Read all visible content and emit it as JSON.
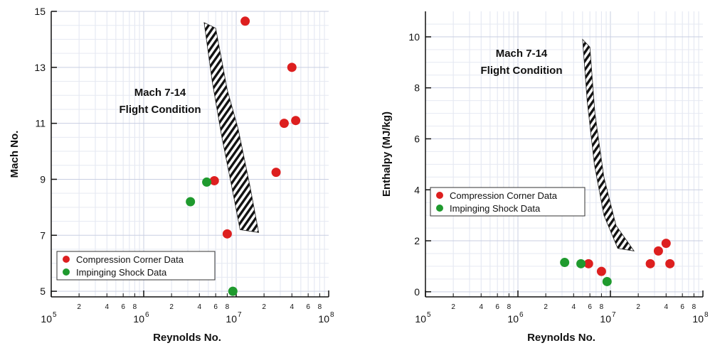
{
  "chart_data": [
    {
      "type": "scatter",
      "x_scale": "log",
      "xlabel": "Reynolds No.",
      "ylabel": "Mach No.",
      "xlim": [
        100000,
        100000000
      ],
      "ylim": [
        4.8,
        15
      ],
      "grid": true,
      "x_major_ticks": [
        {
          "value": 100000,
          "base": "10",
          "exp": "5"
        },
        {
          "value": 1000000,
          "base": "10",
          "exp": "6"
        },
        {
          "value": 10000000,
          "base": "10",
          "exp": "7"
        },
        {
          "value": 100000000,
          "base": "10",
          "exp": "8"
        }
      ],
      "x_minor_labels": [
        "2",
        "4",
        "6",
        "8"
      ],
      "y_ticks": [
        "5",
        "7",
        "9",
        "11",
        "13",
        "15"
      ],
      "annotation": [
        "Mach 7-14",
        "Flight Condition"
      ],
      "legend_position": "bottom-left",
      "band": {
        "left": [
          [
            4500000,
            14.6
          ],
          [
            5500000,
            12.5
          ],
          [
            7000000,
            10.5
          ],
          [
            9000000,
            8.7
          ],
          [
            11000000,
            7.2
          ]
        ],
        "right": [
          [
            6000000,
            14.4
          ],
          [
            8000000,
            12.2
          ],
          [
            10500000,
            10.8
          ],
          [
            14000000,
            8.8
          ],
          [
            17500000,
            7.1
          ]
        ]
      },
      "series": [
        {
          "name": "Compression Corner Data",
          "color": "#dd1f1f",
          "points": [
            [
              12500000,
              14.65
            ],
            [
              40000000,
              13.0
            ],
            [
              33000000,
              11.0
            ],
            [
              44000000,
              11.1
            ],
            [
              27000000,
              9.25
            ],
            [
              5800000,
              8.95
            ],
            [
              8000000,
              7.05
            ]
          ]
        },
        {
          "name": "Impinging Shock Data",
          "color": "#1f9a2e",
          "points": [
            [
              3200000,
              8.2
            ],
            [
              4800000,
              8.9
            ],
            [
              9200000,
              5.0
            ]
          ]
        }
      ]
    },
    {
      "type": "scatter",
      "x_scale": "log",
      "xlabel": "Reynolds No.",
      "ylabel": "Enthalpy (MJ/kg)",
      "xlim": [
        100000,
        100000000
      ],
      "ylim": [
        -0.2,
        11
      ],
      "grid": true,
      "x_major_ticks": [
        {
          "value": 100000,
          "base": "10",
          "exp": "5"
        },
        {
          "value": 1000000,
          "base": "10",
          "exp": "6"
        },
        {
          "value": 10000000,
          "base": "10",
          "exp": "7"
        },
        {
          "value": 100000000,
          "base": "10",
          "exp": "8"
        }
      ],
      "x_minor_labels": [
        "2",
        "4",
        "6",
        "8"
      ],
      "y_ticks": [
        "0",
        "2",
        "4",
        "6",
        "8",
        "10"
      ],
      "annotation": [
        "Mach 7-14",
        "Flight Condition"
      ],
      "legend_position": "center-left",
      "band": {
        "left": [
          [
            5000000,
            9.9
          ],
          [
            5600000,
            7.5
          ],
          [
            6700000,
            5.0
          ],
          [
            8500000,
            3.0
          ],
          [
            12000000,
            1.7
          ]
        ],
        "right": [
          [
            6000000,
            9.6
          ],
          [
            6800000,
            7.0
          ],
          [
            8500000,
            4.5
          ],
          [
            11500000,
            2.6
          ],
          [
            18000000,
            1.6
          ]
        ]
      },
      "series": [
        {
          "name": "Compression Corner Data",
          "color": "#dd1f1f",
          "points": [
            [
              5800000,
              1.1
            ],
            [
              8000000,
              0.8
            ],
            [
              27000000,
              1.1
            ],
            [
              33000000,
              1.6
            ],
            [
              40000000,
              1.9
            ],
            [
              44000000,
              1.1
            ]
          ]
        },
        {
          "name": "Impinging Shock Data",
          "color": "#1f9a2e",
          "points": [
            [
              3200000,
              1.15
            ],
            [
              4800000,
              1.1
            ],
            [
              9200000,
              0.4
            ]
          ]
        }
      ]
    }
  ]
}
